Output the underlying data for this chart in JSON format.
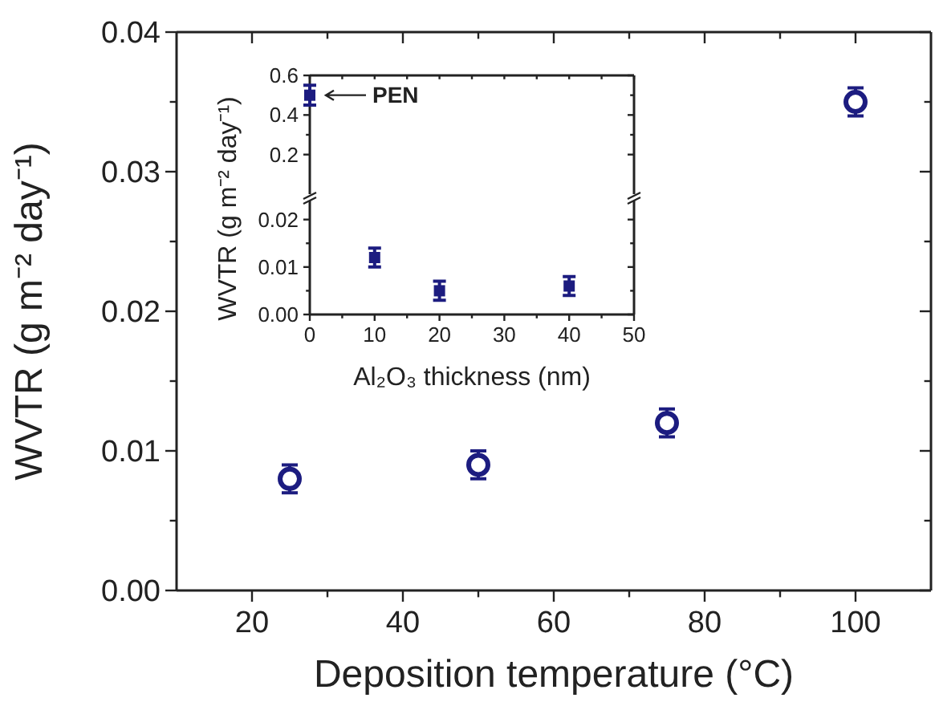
{
  "chart_data": [
    {
      "type": "scatter",
      "xlabel": "Deposition temperature (°C)",
      "ylabel": "WVTR (g m⁻² day⁻¹)",
      "marker": "circle",
      "xlim": [
        10,
        110
      ],
      "xticks": [
        20,
        {
          "value": 30,
          "label": null
        },
        40,
        {
          "value": 50,
          "label": null
        },
        60,
        {
          "value": 70,
          "label": null
        },
        80,
        {
          "value": 90,
          "label": null
        },
        100
      ],
      "ylim": [
        0,
        0.04
      ],
      "yticks": [
        {
          "value": 0,
          "label": "0.00"
        },
        {
          "value": 0.005,
          "label": null
        },
        0.01,
        {
          "value": 0.015,
          "label": null
        },
        0.02,
        {
          "value": 0.025,
          "label": null
        },
        0.03,
        {
          "value": 0.035,
          "label": null
        },
        0.04
      ],
      "series": [
        {
          "color": "#1c1c80",
          "x": [
            25,
            50,
            75,
            100
          ],
          "values": [
            0.008,
            0.009,
            0.012,
            0.035
          ],
          "errors": [
            0.001,
            0.001,
            0.001,
            0.001
          ]
        }
      ]
    },
    {
      "type": "scatter",
      "tick_labels": "y",
      "xlim": [
        0,
        50
      ],
      "xticks": [
        {
          "value": 0,
          "label": null
        },
        {
          "value": 5,
          "label": null
        },
        {
          "value": 10,
          "label": null
        },
        {
          "value": 15,
          "label": null
        },
        {
          "value": 20,
          "label": null
        },
        {
          "value": 25,
          "label": null
        },
        {
          "value": 30,
          "label": null
        },
        {
          "value": 35,
          "label": null
        },
        {
          "value": 40,
          "label": null
        },
        {
          "value": 45,
          "label": null
        },
        {
          "value": 50,
          "label": null
        }
      ],
      "ylim": [
        0,
        0.6
      ],
      "yticks": [
        0.2,
        {
          "value": 0.3,
          "label": null
        },
        0.4,
        {
          "value": 0.5,
          "label": null
        },
        0.6
      ],
      "annotations": [
        {
          "text": "PEN",
          "x": 0,
          "y": 0.5
        }
      ],
      "series": [
        {
          "color": "#1c1c80",
          "x": [
            0
          ],
          "values": [
            0.5
          ],
          "errors": [
            0.05
          ]
        }
      ]
    },
    {
      "type": "scatter",
      "xlabel": "Al₂O₃ thickness (nm)",
      "ylabel": "WVTR (g m⁻² day⁻¹)",
      "xlim": [
        0,
        50
      ],
      "xticks": [
        0,
        {
          "value": 5,
          "label": null
        },
        10,
        {
          "value": 15,
          "label": null
        },
        20,
        {
          "value": 25,
          "label": null
        },
        30,
        {
          "value": 35,
          "label": null
        },
        40,
        {
          "value": 45,
          "label": null
        },
        50
      ],
      "ylim": [
        0,
        0.024
      ],
      "yticks": [
        {
          "value": 0,
          "label": "0.00"
        },
        {
          "value": 0.005,
          "label": null
        },
        0.01,
        {
          "value": 0.015,
          "label": null
        },
        0.02
      ],
      "series": [
        {
          "color": "#1c1c80",
          "x": [
            10,
            20,
            40
          ],
          "values": [
            0.012,
            0.005,
            0.006
          ],
          "errors": [
            0.002,
            0.002,
            0.002
          ]
        }
      ]
    }
  ]
}
